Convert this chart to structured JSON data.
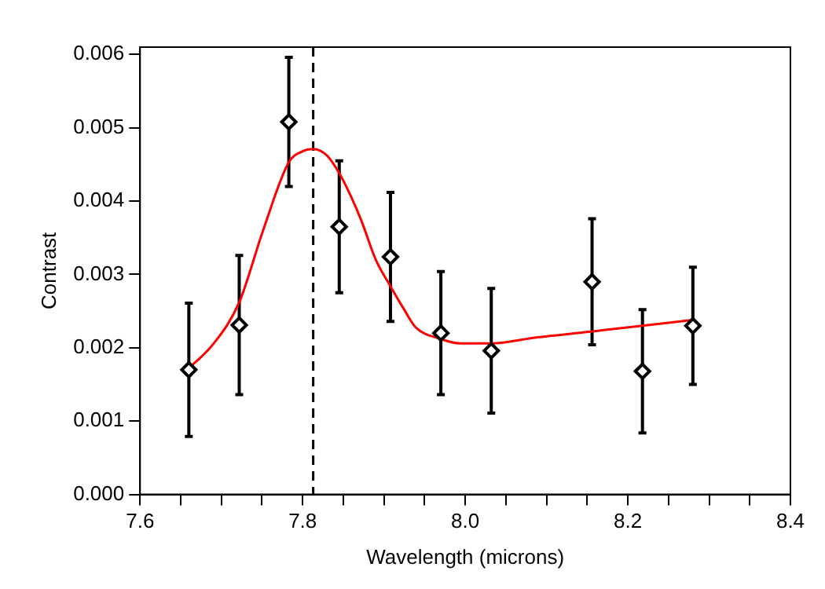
{
  "chart_data": {
    "type": "scatter",
    "xlabel": "Wavelength (microns)",
    "ylabel": "Contrast",
    "xlim": [
      7.6,
      8.4
    ],
    "ylim": [
      0,
      0.0061
    ],
    "xticks": [
      7.6,
      {
        "value": 7.65,
        "label": null
      },
      {
        "value": 7.7,
        "label": null
      },
      {
        "value": 7.75,
        "label": null
      },
      7.8,
      {
        "value": 7.85,
        "label": null
      },
      {
        "value": 7.9,
        "label": null
      },
      {
        "value": 7.95,
        "label": null
      },
      {
        "value": 8,
        "label": "8.0"
      },
      {
        "value": 8.05,
        "label": null
      },
      {
        "value": 8.1,
        "label": null
      },
      {
        "value": 8.15,
        "label": null
      },
      8.2,
      {
        "value": 8.25,
        "label": null
      },
      {
        "value": 8.3,
        "label": null
      },
      {
        "value": 8.35,
        "label": null
      },
      8.4
    ],
    "yticks": [
      {
        "value": 0,
        "label": "0.000"
      },
      {
        "value": 0.001,
        "label": "0.001"
      },
      {
        "value": 0.002,
        "label": "0.002"
      },
      {
        "value": 0.003,
        "label": "0.003"
      },
      {
        "value": 0.004,
        "label": "0.004"
      },
      {
        "value": 0.005,
        "label": "0.005"
      },
      {
        "value": 0.006,
        "label": "0.006"
      }
    ],
    "grid": false,
    "legend": false,
    "series": [
      {
        "color": "#000000",
        "marker": "diamond",
        "x": [
          7.66,
          7.722,
          7.783,
          7.845,
          7.908,
          7.97,
          8.032,
          8.156,
          8.218,
          8.28
        ],
        "values": [
          0.0017,
          0.00231,
          0.00508,
          0.00365,
          0.00324,
          0.0022,
          0.00196,
          0.0029,
          0.00168,
          0.0023
        ],
        "errors": [
          0.00091,
          0.00095,
          0.00088,
          0.0009,
          0.00088,
          0.00084,
          0.00085,
          0.00086,
          0.00084,
          0.0008
        ]
      },
      {
        "type": "line",
        "color": "#ff0000",
        "marker": "none",
        "line_style": "solid",
        "x": [
          7.66,
          7.69,
          7.722,
          7.751,
          7.783,
          7.8,
          7.813,
          7.83,
          7.845,
          7.86,
          7.872,
          7.89,
          7.908,
          7.926,
          7.939,
          7.97,
          7.993,
          8.032,
          8.087,
          8.154,
          8.218,
          8.28
        ],
        "values": [
          0.00172,
          0.00205,
          0.00262,
          0.00359,
          0.00453,
          0.00468,
          0.00471,
          0.00462,
          0.00438,
          0.00405,
          0.00374,
          0.0032,
          0.00284,
          0.0025,
          0.00228,
          0.00212,
          0.00206,
          0.00206,
          0.00214,
          0.00222,
          0.0023,
          0.00238
        ]
      }
    ],
    "ref_lines": [
      {
        "axis": "x",
        "value": 7.813,
        "color": "#000000",
        "line_style": "dashed"
      }
    ]
  }
}
